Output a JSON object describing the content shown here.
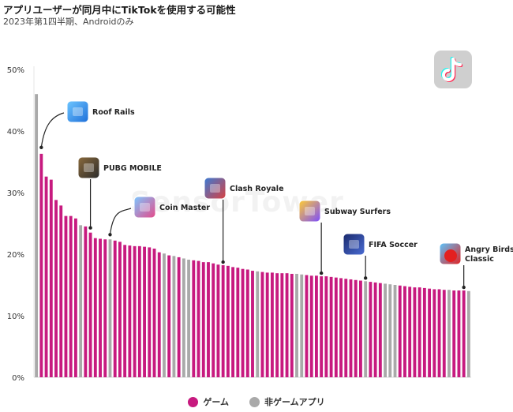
{
  "title": "アプリユーザーが同月中にTikTokを使用する可能性",
  "subtitle": "2023年第1四半期、Androidのみ",
  "watermark": "SensorTower",
  "legend": {
    "game_label": "ゲーム",
    "nongame_label": "非ゲームアプリ"
  },
  "colors": {
    "game": "#c71a7f",
    "nongame": "#a9a9a9"
  },
  "chart_data": {
    "type": "bar",
    "ylim": [
      0,
      50
    ],
    "yticks": [
      "0%",
      "10%",
      "20%",
      "30%",
      "40%",
      "50%"
    ],
    "series": [
      {
        "name": "ゲーム",
        "color": "#c71a7f"
      },
      {
        "name": "非ゲームアプリ",
        "color": "#a9a9a9"
      }
    ],
    "values": [
      46.0,
      36.3,
      32.6,
      32.1,
      28.8,
      27.9,
      26.2,
      26.2,
      25.8,
      24.7,
      24.5,
      23.5,
      22.6,
      22.5,
      22.4,
      22.4,
      22.2,
      22.0,
      21.5,
      21.4,
      21.3,
      21.3,
      21.2,
      21.1,
      20.9,
      20.3,
      20.1,
      19.8,
      19.7,
      19.5,
      19.3,
      19.1,
      19.0,
      18.9,
      18.7,
      18.7,
      18.5,
      18.3,
      18.2,
      18.1,
      17.9,
      17.8,
      17.6,
      17.5,
      17.3,
      17.2,
      17.1,
      17.0,
      17.0,
      16.9,
      16.9,
      16.9,
      16.8,
      16.8,
      16.7,
      16.6,
      16.5,
      16.5,
      16.4,
      16.4,
      16.3,
      16.2,
      16.1,
      16.0,
      15.9,
      15.8,
      15.7,
      15.6,
      15.5,
      15.4,
      15.3,
      15.2,
      15.1,
      15.0,
      14.9,
      14.8,
      14.7,
      14.6,
      14.6,
      14.5,
      14.4,
      14.3,
      14.3,
      14.2,
      14.2,
      14.1,
      14.1,
      14.1,
      14.0
    ],
    "categories": [
      "nongame",
      "game",
      "game",
      "game",
      "game",
      "game",
      "game",
      "game",
      "game",
      "nongame",
      "game",
      "game",
      "game",
      "game",
      "game",
      "nongame",
      "game",
      "game",
      "game",
      "game",
      "game",
      "game",
      "game",
      "game",
      "game",
      "game",
      "nongame",
      "game",
      "nongame",
      "game",
      "nongame",
      "nongame",
      "game",
      "game",
      "game",
      "game",
      "game",
      "game",
      "game",
      "game",
      "game",
      "game",
      "game",
      "game",
      "game",
      "nongame",
      "game",
      "game",
      "game",
      "game",
      "game",
      "game",
      "game",
      "nongame",
      "nongame",
      "game",
      "game",
      "game",
      "game",
      "game",
      "game",
      "game",
      "game",
      "game",
      "game",
      "game",
      "game",
      "nongame",
      "game",
      "game",
      "game",
      "nongame",
      "nongame",
      "nongame",
      "game",
      "game",
      "game",
      "game",
      "game",
      "game",
      "game",
      "game",
      "game",
      "game",
      "nongame",
      "game",
      "game",
      "game",
      "nongame"
    ],
    "annotations": [
      {
        "label": "Roof Rails",
        "index": 1,
        "icon": "roof-rails-app-icon"
      },
      {
        "label": "PUBG MOBILE",
        "index": 11,
        "icon": "pubg-mobile-app-icon"
      },
      {
        "label": "Coin Master",
        "index": 15,
        "icon": "coin-master-app-icon"
      },
      {
        "label": "Clash Royale",
        "index": 38,
        "icon": "clash-royale-app-icon"
      },
      {
        "label": "Subway Surfers",
        "index": 58,
        "icon": "subway-surfers-app-icon"
      },
      {
        "label": "FIFA Soccer",
        "index": 67,
        "icon": "fifa-soccer-app-icon"
      },
      {
        "label": "Angry Birds Classic",
        "index": 87,
        "icon": "angry-birds-classic-app-icon"
      }
    ],
    "legend_placement": "bottom",
    "grid": false
  }
}
